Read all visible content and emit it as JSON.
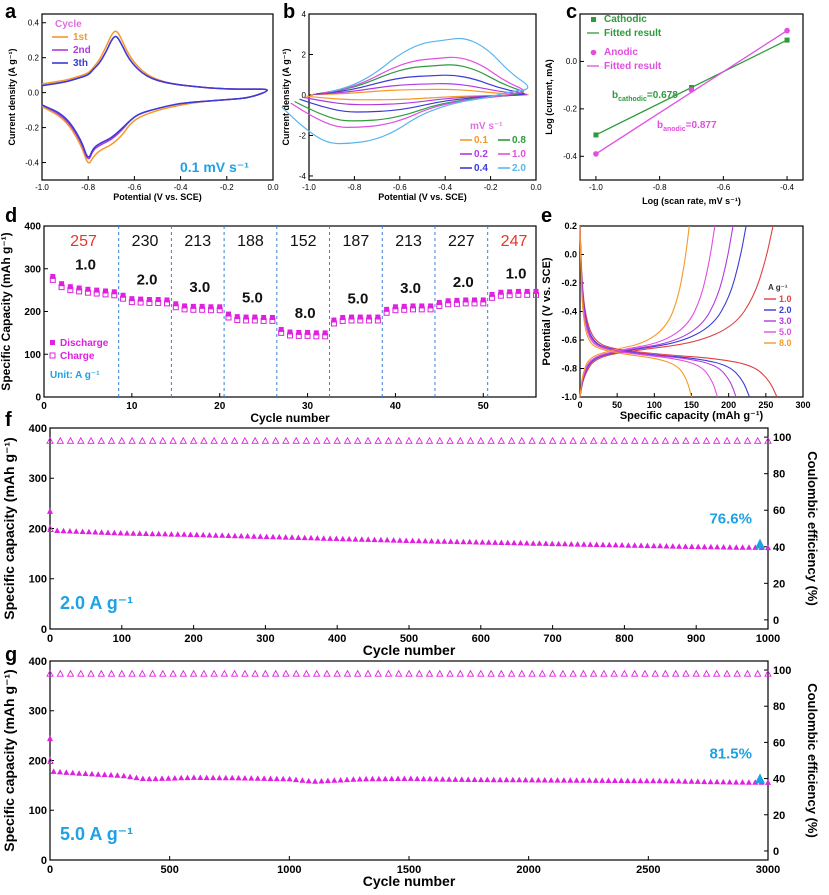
{
  "chart_data": [
    {
      "panel": "a",
      "type": "line",
      "xlabel": "Potential (V vs. SCE)",
      "ylabel": "Current density (A g⁻¹)",
      "xlim": [
        -1.0,
        0.0
      ],
      "ylim": [
        -0.5,
        0.45
      ],
      "xticks": [
        "-1.0",
        "-0.8",
        "-0.6",
        "-0.4",
        "-0.2",
        "0.0"
      ],
      "yticks": [
        "-0.4",
        "-0.2",
        "0.0",
        "0.2",
        "0.4"
      ],
      "legend_title": "Cycle",
      "annotation": "0.1 mV s⁻¹",
      "series": [
        {
          "name": "1st",
          "color": "#f39a2b",
          "x": [
            -1.0,
            -0.9,
            -0.85,
            -0.8,
            -0.78,
            -0.75,
            -0.72,
            -0.7,
            -0.68,
            -0.66,
            -0.62,
            -0.55,
            -0.45,
            -0.3,
            -0.2,
            -0.1,
            0.0,
            -0.1,
            -0.2,
            -0.3,
            -0.4,
            -0.5,
            -0.58,
            -0.62,
            -0.65,
            -0.7,
            -0.75,
            -0.78,
            -0.8,
            -0.83,
            -0.9,
            -1.0
          ],
          "y": [
            0.05,
            0.07,
            0.09,
            0.11,
            0.14,
            0.19,
            0.27,
            0.33,
            0.36,
            0.32,
            0.2,
            0.1,
            0.05,
            0.03,
            0.02,
            0.02,
            0.02,
            -0.03,
            -0.04,
            -0.05,
            -0.07,
            -0.1,
            -0.14,
            -0.18,
            -0.24,
            -0.3,
            -0.33,
            -0.37,
            -0.42,
            -0.3,
            -0.15,
            -0.08
          ]
        },
        {
          "name": "2nd",
          "color": "#b03ae0",
          "x": [
            -1.0,
            -0.9,
            -0.85,
            -0.8,
            -0.78,
            -0.75,
            -0.72,
            -0.7,
            -0.68,
            -0.66,
            -0.62,
            -0.55,
            -0.45,
            -0.3,
            -0.2,
            -0.1,
            0.0,
            -0.1,
            -0.2,
            -0.3,
            -0.4,
            -0.5,
            -0.58,
            -0.62,
            -0.65,
            -0.7,
            -0.75,
            -0.78,
            -0.8,
            -0.83,
            -0.9,
            -1.0
          ],
          "y": [
            0.04,
            0.06,
            0.08,
            0.1,
            0.13,
            0.17,
            0.24,
            0.3,
            0.33,
            0.29,
            0.18,
            0.09,
            0.05,
            0.03,
            0.02,
            0.02,
            0.02,
            -0.03,
            -0.04,
            -0.05,
            -0.06,
            -0.09,
            -0.12,
            -0.16,
            -0.21,
            -0.27,
            -0.3,
            -0.33,
            -0.4,
            -0.28,
            -0.14,
            -0.07
          ]
        },
        {
          "name": "3th",
          "color": "#3b3bd6",
          "x": [
            -1.0,
            -0.9,
            -0.85,
            -0.8,
            -0.78,
            -0.75,
            -0.72,
            -0.7,
            -0.68,
            -0.66,
            -0.62,
            -0.55,
            -0.45,
            -0.3,
            -0.2,
            -0.1,
            0.0,
            -0.1,
            -0.2,
            -0.3,
            -0.4,
            -0.5,
            -0.58,
            -0.62,
            -0.65,
            -0.7,
            -0.75,
            -0.78,
            -0.8,
            -0.83,
            -0.9,
            -1.0
          ],
          "y": [
            0.04,
            0.06,
            0.08,
            0.1,
            0.13,
            0.17,
            0.24,
            0.3,
            0.33,
            0.29,
            0.18,
            0.09,
            0.05,
            0.03,
            0.02,
            0.02,
            0.02,
            -0.03,
            -0.04,
            -0.05,
            -0.06,
            -0.09,
            -0.12,
            -0.16,
            -0.2,
            -0.26,
            -0.29,
            -0.32,
            -0.39,
            -0.27,
            -0.13,
            -0.07
          ]
        }
      ]
    },
    {
      "panel": "b",
      "type": "line",
      "xlabel": "Potential (V vs. SCE)",
      "ylabel": "Current density (A g⁻¹)",
      "xlim": [
        -1.0,
        0.0
      ],
      "ylim": [
        -4.2,
        4.0
      ],
      "xticks": [
        "-1.0",
        "-0.8",
        "-0.6",
        "-0.4",
        "-0.2",
        "0.0"
      ],
      "yticks": [
        "-4",
        "-2",
        "0",
        "2",
        "4"
      ],
      "legend_title": "mV s⁻¹",
      "series": [
        {
          "name": "0.1",
          "color": "#f39a2b",
          "scale": 0.3
        },
        {
          "name": "0.2",
          "color": "#b03ae0",
          "scale": 0.6
        },
        {
          "name": "0.4",
          "color": "#3b3bd6",
          "scale": 1.05
        },
        {
          "name": "0.8",
          "color": "#2e9b3c",
          "scale": 1.6
        },
        {
          "name": "1.0",
          "color": "#e04fe0",
          "scale": 2.0
        },
        {
          "name": "2.0",
          "color": "#5ab4ec",
          "scale": 3.0
        }
      ],
      "base_shape": {
        "x": [
          -1.0,
          -0.9,
          -0.8,
          -0.7,
          -0.6,
          -0.5,
          -0.4,
          -0.3,
          -0.2,
          -0.1,
          0.0,
          -0.1,
          -0.2,
          -0.3,
          -0.4,
          -0.5,
          -0.6,
          -0.7,
          -0.8,
          -0.9,
          -1.0
        ],
        "y": [
          0.05,
          0.15,
          0.35,
          0.65,
          0.85,
          0.9,
          0.95,
          0.75,
          0.35,
          0.1,
          0.05,
          -0.05,
          -0.1,
          -0.2,
          -0.35,
          -0.6,
          -0.75,
          -0.8,
          -0.8,
          -0.55,
          -0.2
        ]
      }
    },
    {
      "panel": "c",
      "type": "scatter",
      "xlabel": "Log (scan rate, mV s⁻¹)",
      "ylabel": "Log (current, mA)",
      "xlim": [
        -1.05,
        -0.35
      ],
      "ylim": [
        -0.5,
        0.2
      ],
      "xticks": [
        "-1.0",
        "-0.8",
        "-0.6",
        "-0.4"
      ],
      "yticks": [
        "-0.4",
        "-0.2",
        "0.0"
      ],
      "series": [
        {
          "name": "Cathodic",
          "fit_name": "Fitted result",
          "color": "#2e9b3c",
          "x": [
            -1.0,
            -0.7,
            -0.4
          ],
          "y": [
            -0.31,
            -0.11,
            0.09
          ]
        },
        {
          "name": "Anodic",
          "fit_name": "Fitted result",
          "color": "#e04fe0",
          "x": [
            -1.0,
            -0.7,
            -0.4
          ],
          "y": [
            -0.39,
            -0.12,
            0.13
          ]
        }
      ],
      "annotations": [
        {
          "text": "b",
          "sub": "cathodic",
          "value": "=0.678",
          "color": "#2e9b3c"
        },
        {
          "text": "b",
          "sub": "anodic",
          "value": "=0.877",
          "color": "#e04fe0"
        }
      ]
    },
    {
      "panel": "d",
      "type": "scatter",
      "xlabel": "Cycle number",
      "ylabel": "Specific Capacity (mAh g⁻¹)",
      "xlim": [
        0,
        56
      ],
      "ylim": [
        0,
        400
      ],
      "xticks": [
        "0",
        "10",
        "20",
        "30",
        "40",
        "50"
      ],
      "yticks": [
        "0",
        "100",
        "200",
        "300",
        "400"
      ],
      "legend": [
        "Discharge",
        "Charge"
      ],
      "unit_label": "Unit: A g⁻¹",
      "dividers": [
        8.5,
        14.5,
        20.5,
        26.5,
        32.5,
        38.5,
        44.5,
        50.5
      ],
      "segments": [
        {
          "rate": "1.0",
          "capacity": "257",
          "start": 1,
          "end": 8,
          "discharge": [
            282,
            265,
            258,
            255,
            252,
            250,
            248,
            246
          ]
        },
        {
          "rate": "2.0",
          "capacity": "230",
          "start": 9,
          "end": 14,
          "discharge": [
            238,
            230,
            229,
            228,
            228,
            227
          ]
        },
        {
          "rate": "3.0",
          "capacity": "213",
          "start": 15,
          "end": 20,
          "discharge": [
            218,
            213,
            212,
            212,
            211,
            211
          ]
        },
        {
          "rate": "5.0",
          "capacity": "188",
          "start": 21,
          "end": 26,
          "discharge": [
            194,
            188,
            187,
            187,
            186,
            186
          ]
        },
        {
          "rate": "8.0",
          "capacity": "152",
          "start": 27,
          "end": 32,
          "discharge": [
            158,
            152,
            151,
            151,
            150,
            150
          ]
        },
        {
          "rate": "5.0",
          "capacity": "187",
          "start": 33,
          "end": 38,
          "discharge": [
            180,
            186,
            187,
            187,
            187,
            187
          ]
        },
        {
          "rate": "3.0",
          "capacity": "213",
          "start": 39,
          "end": 44,
          "discharge": [
            205,
            211,
            212,
            213,
            213,
            213
          ]
        },
        {
          "rate": "2.0",
          "capacity": "227",
          "start": 45,
          "end": 50,
          "discharge": [
            221,
            225,
            226,
            227,
            227,
            227
          ]
        },
        {
          "rate": "1.0",
          "capacity": "247",
          "start": 51,
          "end": 56,
          "discharge": [
            240,
            245,
            246,
            247,
            247,
            247
          ]
        }
      ]
    },
    {
      "panel": "e",
      "type": "line",
      "xlabel": "Specific capacity (mAh g⁻¹)",
      "ylabel": "Potential (V vs. SCE)",
      "xlim": [
        0,
        300
      ],
      "ylim": [
        -1.0,
        0.2
      ],
      "xticks": [
        "0",
        "50",
        "100",
        "150",
        "200",
        "250",
        "300"
      ],
      "yticks": [
        "-1.0",
        "-0.8",
        "-0.6",
        "-0.4",
        "-0.2",
        "0.0",
        "0.2"
      ],
      "legend_title": "A g⁻¹",
      "series": [
        {
          "name": "1.0",
          "color": "#e04040",
          "capacity": 265
        },
        {
          "name": "2.0",
          "color": "#3b3bd6",
          "capacity": 228
        },
        {
          "name": "3.0",
          "color": "#b03ae0",
          "capacity": 210
        },
        {
          "name": "5.0",
          "color": "#e04fe0",
          "capacity": 185
        },
        {
          "name": "8.0",
          "color": "#f39a2b",
          "capacity": 150
        }
      ]
    },
    {
      "panel": "f",
      "type": "scatter",
      "xlabel": "Cycle number",
      "ylabel": "Specific capacity (mAh g⁻¹)",
      "y2label": "Coulombic efficiency (%)",
      "xlim": [
        0,
        1000
      ],
      "ylim": [
        0,
        400
      ],
      "y2lim": [
        -5,
        105
      ],
      "xticks": [
        "0",
        "100",
        "200",
        "300",
        "400",
        "500",
        "600",
        "700",
        "800",
        "900",
        "1000"
      ],
      "yticks": [
        "0",
        "100",
        "200",
        "300",
        "400"
      ],
      "y2ticks": [
        "0",
        "20",
        "40",
        "60",
        "80",
        "100"
      ],
      "rate_label": "2.0 A g⁻¹",
      "retention": "76.6%",
      "capacity_points": {
        "x": [
          0,
          10,
          100,
          200,
          300,
          400,
          500,
          600,
          700,
          800,
          900,
          1000
        ],
        "y": [
          235,
          196,
          191,
          188,
          184,
          180,
          176,
          173,
          170,
          167,
          164,
          162
        ]
      },
      "efficiency": 98
    },
    {
      "panel": "g",
      "type": "scatter",
      "xlabel": "Cycle number",
      "ylabel": "Specific capacity (mAh g⁻¹)",
      "y2label": "Coulombic efficiency (%)",
      "xlim": [
        0,
        3000
      ],
      "ylim": [
        0,
        400
      ],
      "y2lim": [
        -5,
        105
      ],
      "xticks": [
        "0",
        "500",
        "1000",
        "1500",
        "2000",
        "2500",
        "3000"
      ],
      "yticks": [
        "0",
        "100",
        "200",
        "300",
        "400"
      ],
      "y2ticks": [
        "0",
        "20",
        "40",
        "60",
        "80",
        "100"
      ],
      "rate_label": "5.0 A g⁻¹",
      "retention": "81.5%",
      "capacity_points": {
        "x": [
          0,
          15,
          100,
          300,
          400,
          600,
          800,
          1000,
          1100,
          1300,
          1500,
          1700,
          2000,
          2300,
          2600,
          2800,
          3000
        ],
        "y": [
          245,
          178,
          175,
          170,
          163,
          166,
          165,
          163,
          158,
          163,
          164,
          162,
          161,
          160,
          159,
          157,
          156
        ]
      },
      "efficiency": 98
    }
  ],
  "panel_letters": [
    "a",
    "b",
    "c",
    "d",
    "e",
    "f",
    "g"
  ],
  "colors": {
    "magenta": "#e020e0",
    "cyan": "#1fa2e4",
    "red": "#e8352a"
  }
}
